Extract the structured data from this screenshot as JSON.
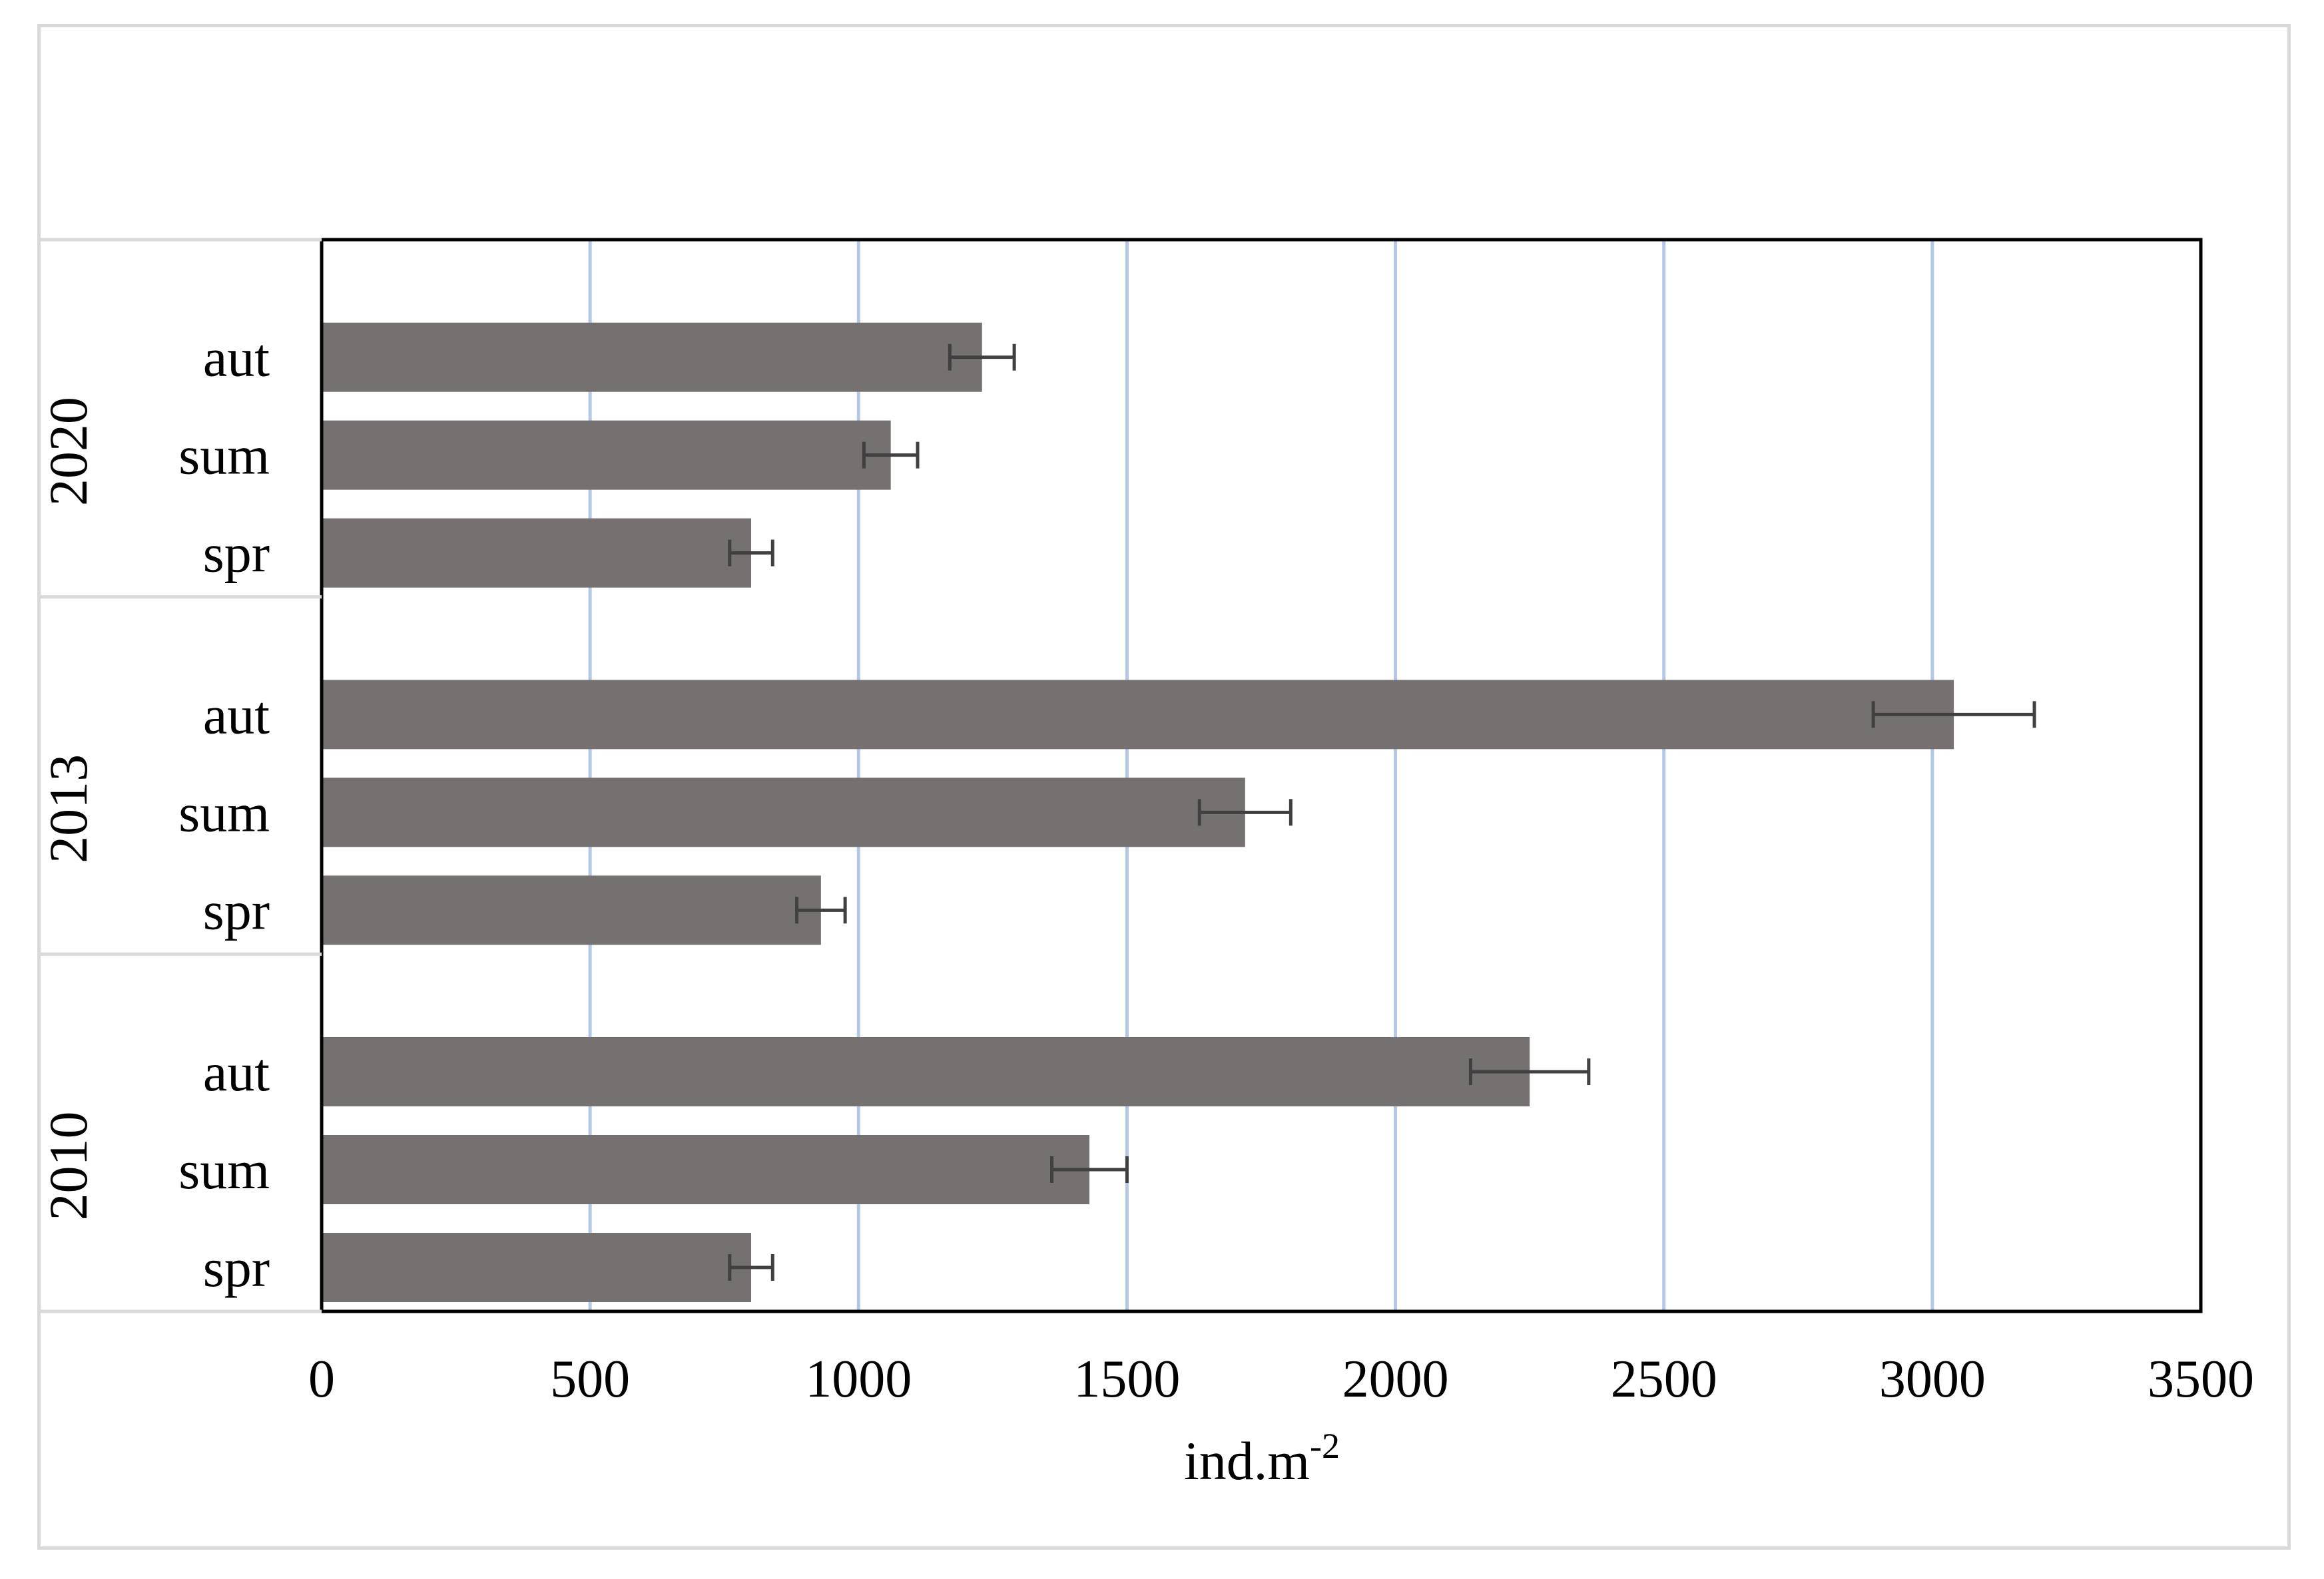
{
  "colors": {
    "bar": "#767171",
    "error_bar": "#404040",
    "gridline": "#b4c7e7",
    "plot_border": "#000000",
    "category_divider": "#d9d9d9",
    "frame": "#d9d9d9"
  },
  "chart_data": {
    "type": "bar",
    "orientation": "horizontal",
    "xlabel": "ind.m",
    "xlabel_superscript": "-2",
    "xlim": [
      0,
      3500
    ],
    "x_ticks": [
      "0",
      "500",
      "1000",
      "1500",
      "2000",
      "2500",
      "3000",
      "3500"
    ],
    "grid": "vertical",
    "legend": "none",
    "groups": [
      {
        "name": "2020",
        "bars": [
          {
            "label": "aut",
            "value": 1230,
            "error": 60
          },
          {
            "label": "sum",
            "value": 1060,
            "error": 50
          },
          {
            "label": "spr",
            "value": 800,
            "error": 40
          }
        ]
      },
      {
        "name": "2013",
        "bars": [
          {
            "label": "aut",
            "value": 3040,
            "error": 150
          },
          {
            "label": "sum",
            "value": 1720,
            "error": 85
          },
          {
            "label": "spr",
            "value": 930,
            "error": 45
          }
        ]
      },
      {
        "name": "2010",
        "bars": [
          {
            "label": "aut",
            "value": 2250,
            "error": 110
          },
          {
            "label": "sum",
            "value": 1430,
            "error": 70
          },
          {
            "label": "spr",
            "value": 800,
            "error": 40
          }
        ]
      }
    ]
  }
}
